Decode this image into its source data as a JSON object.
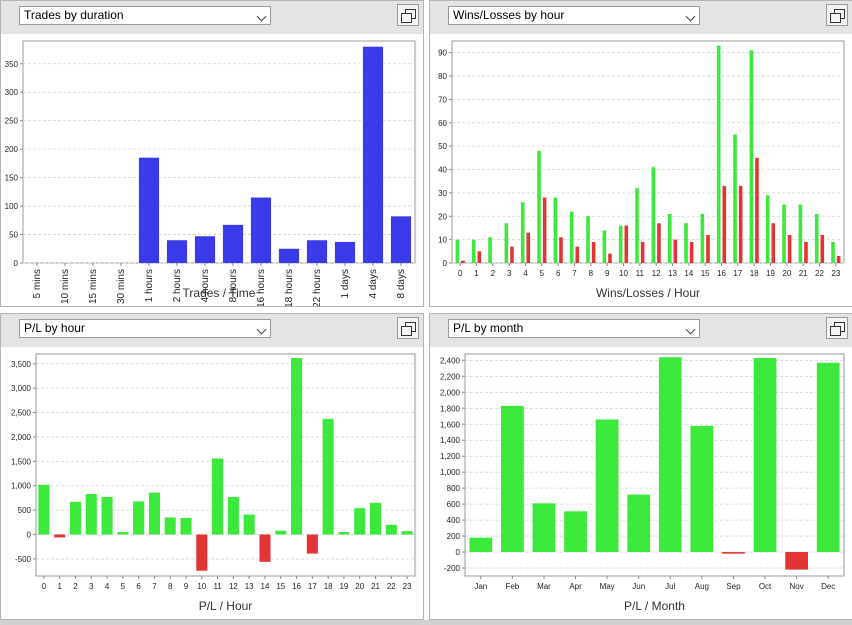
{
  "panels": [
    {
      "select_label": "Trades by duration",
      "chart_data": {
        "type": "bar",
        "xlabel": "Trades / Time",
        "ylim": [
          0,
          390
        ],
        "yticks": [
          0,
          50,
          100,
          150,
          200,
          250,
          300,
          350
        ],
        "ytick_labels": [
          "0",
          "50",
          "100",
          "150",
          "200",
          "250",
          "300",
          "350"
        ],
        "categories": [
          "5 mins",
          "10 mins",
          "15 mins",
          "30 mins",
          "1 hours",
          "2 hours",
          "4 hours",
          "8 hours",
          "16 hours",
          "18 hours",
          "22 hours",
          "1 days",
          "4 days",
          "8 days"
        ],
        "rotate_labels": true,
        "grid": true,
        "series": [
          {
            "values": [
              0,
              0,
              0,
              0,
              185,
              40,
              47,
              67,
              115,
              25,
              40,
              37,
              380,
              82
            ],
            "color": "#3a3ae8"
          }
        ]
      }
    },
    {
      "select_label": "Wins/Losses by hour",
      "chart_data": {
        "type": "bar",
        "xlabel": "Wins/Losses / Hour",
        "ylim": [
          0,
          95
        ],
        "yticks": [
          0,
          10,
          20,
          30,
          40,
          50,
          60,
          70,
          80,
          90
        ],
        "ytick_labels": [
          "0",
          "10",
          "20",
          "30",
          "40",
          "50",
          "60",
          "70",
          "80",
          "90"
        ],
        "categories": [
          "0",
          "1",
          "2",
          "3",
          "4",
          "5",
          "6",
          "7",
          "8",
          "9",
          "10",
          "11",
          "12",
          "13",
          "14",
          "15",
          "16",
          "17",
          "18",
          "19",
          "20",
          "21",
          "22",
          "23"
        ],
        "rotate_labels": false,
        "grid": true,
        "series": [
          {
            "values": [
              10,
              10,
              11,
              17,
              26,
              48,
              28,
              22,
              20,
              14,
              16,
              32,
              41,
              21,
              17,
              21,
              93,
              55,
              91,
              29,
              25,
              25,
              21,
              9
            ],
            "color": "#3ce83c"
          },
          {
            "values": [
              1,
              5,
              0,
              7,
              13,
              28,
              11,
              7,
              9,
              4,
              16,
              9,
              17,
              10,
              9,
              12,
              33,
              33,
              45,
              17,
              12,
              9,
              12,
              3
            ],
            "color": "#e23434"
          }
        ]
      }
    },
    {
      "select_label": "P/L by hour",
      "chart_data": {
        "type": "bar",
        "xlabel": "P/L / Hour",
        "ylim": [
          -850,
          3700
        ],
        "yticks": [
          -500,
          0,
          500,
          1000,
          1500,
          2000,
          2500,
          3000,
          3500
        ],
        "ytick_labels": [
          "-500",
          "0",
          "500",
          "1,000",
          "1,500",
          "2,000",
          "2,500",
          "3,000",
          "3,500"
        ],
        "categories": [
          "0",
          "1",
          "2",
          "3",
          "4",
          "5",
          "6",
          "7",
          "8",
          "9",
          "10",
          "11",
          "12",
          "13",
          "14",
          "15",
          "16",
          "17",
          "18",
          "19",
          "20",
          "21",
          "22",
          "23"
        ],
        "rotate_labels": false,
        "grid": true,
        "pos_color": "#3ce83c",
        "neg_color": "#e23434",
        "series": [
          {
            "values": [
              1020,
              -60,
              670,
              830,
              770,
              50,
              680,
              860,
              350,
              340,
              -740,
              1560,
              770,
              410,
              -560,
              80,
              3620,
              -390,
              2370,
              50,
              540,
              650,
              200,
              70
            ]
          }
        ]
      }
    },
    {
      "select_label": "P/L by month",
      "chart_data": {
        "type": "bar",
        "xlabel": "P/L / Month",
        "ylim": [
          -300,
          2480
        ],
        "yticks": [
          -200,
          0,
          200,
          400,
          600,
          800,
          1000,
          1200,
          1400,
          1600,
          1800,
          2000,
          2200,
          2400
        ],
        "ytick_labels": [
          "-200",
          "0",
          "200",
          "400",
          "600",
          "800",
          "1,000",
          "1,200",
          "1,400",
          "1,600",
          "1,800",
          "2,000",
          "2,200",
          "2,400"
        ],
        "categories": [
          "Jan",
          "Feb",
          "Mar",
          "Apr",
          "May",
          "Jun",
          "Jul",
          "Aug",
          "Sep",
          "Oct",
          "Nov",
          "Dec"
        ],
        "rotate_labels": false,
        "grid": true,
        "pos_color": "#3ce83c",
        "neg_color": "#e23434",
        "series": [
          {
            "values": [
              180,
              1830,
              610,
              510,
              1660,
              720,
              2440,
              1580,
              -20,
              2430,
              -220,
              2370
            ]
          }
        ]
      }
    }
  ]
}
